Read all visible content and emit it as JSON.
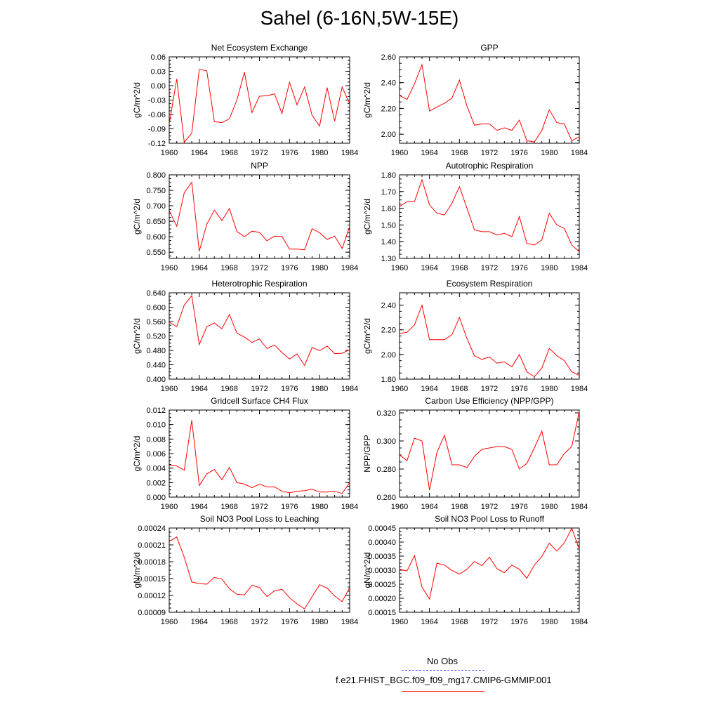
{
  "title": "Sahel (6-16N,5W-15E)",
  "legend": {
    "obs_label": "No Obs",
    "obs_color": "#3a3aff",
    "model_label": "f.e21.FHIST_BGC.f09_f09_mg17.CMIP6-GMMIP.001",
    "model_color": "#ff0000"
  },
  "chart_data": [
    {
      "type": "line",
      "title": "Net Ecosystem Exchange",
      "ylabel": "gC/m^2/d",
      "xlabel": "",
      "ylim": [
        -0.12,
        0.06
      ],
      "yticks": [
        "0.06",
        "0.03",
        "0.00",
        "-0.03",
        "-0.06",
        "-0.09",
        "-0.12"
      ],
      "ytick_values": [
        0.06,
        0.03,
        0.0,
        -0.03,
        -0.06,
        -0.09,
        -0.12
      ],
      "xlim": [
        1960,
        1984
      ],
      "xticks": [
        "1960",
        "1964",
        "1968",
        "1972",
        "1976",
        "1980",
        "1984"
      ],
      "x": [
        1960,
        1961,
        1962,
        1963,
        1964,
        1965,
        1966,
        1967,
        1968,
        1969,
        1970,
        1971,
        1972,
        1973,
        1974,
        1975,
        1976,
        1977,
        1978,
        1979,
        1980,
        1981,
        1982,
        1983,
        1984
      ],
      "series": [
        {
          "name": "f.e21.FHIST_BGC.f09_f09_mg17.CMIP6-GMMIP.001",
          "values": [
            -0.08,
            0.014,
            -0.118,
            -0.099,
            0.034,
            0.031,
            -0.075,
            -0.077,
            -0.069,
            -0.03,
            0.028,
            -0.056,
            -0.022,
            -0.021,
            -0.017,
            -0.058,
            0.007,
            -0.04,
            -0.003,
            -0.062,
            -0.084,
            -0.004,
            -0.074,
            -0.003,
            -0.038
          ]
        }
      ]
    },
    {
      "type": "line",
      "title": "GPP",
      "ylabel": "gC/m^2/d",
      "xlabel": "",
      "ylim": [
        1.93,
        2.6
      ],
      "yticks": [
        "2.60",
        "2.40",
        "2.20",
        "2.00"
      ],
      "ytick_values": [
        2.6,
        2.4,
        2.2,
        2.0
      ],
      "xlim": [
        1960,
        1984
      ],
      "xticks": [
        "1960",
        "1964",
        "1968",
        "1972",
        "1976",
        "1980",
        "1984"
      ],
      "x": [
        1960,
        1961,
        1962,
        1963,
        1964,
        1965,
        1966,
        1967,
        1968,
        1969,
        1970,
        1971,
        1972,
        1973,
        1974,
        1975,
        1976,
        1977,
        1978,
        1979,
        1980,
        1981,
        1982,
        1983,
        1984
      ],
      "series": [
        {
          "name": "f.e21.FHIST_BGC.f09_f09_mg17.CMIP6-GMMIP.001",
          "values": [
            2.3,
            2.27,
            2.39,
            2.54,
            2.18,
            2.21,
            2.24,
            2.28,
            2.42,
            2.22,
            2.07,
            2.08,
            2.08,
            2.03,
            2.05,
            2.03,
            2.11,
            1.95,
            1.94,
            2.03,
            2.19,
            2.09,
            2.08,
            1.95,
            1.98
          ]
        }
      ]
    },
    {
      "type": "line",
      "title": "NPP",
      "ylabel": "gC/m^2/d",
      "xlabel": "",
      "ylim": [
        0.53,
        0.8
      ],
      "yticks": [
        "0.800",
        "0.750",
        "0.700",
        "0.650",
        "0.600",
        "0.550"
      ],
      "ytick_values": [
        0.8,
        0.75,
        0.7,
        0.65,
        0.6,
        0.55
      ],
      "xlim": [
        1960,
        1984
      ],
      "xticks": [
        "1960",
        "1964",
        "1968",
        "1972",
        "1976",
        "1980",
        "1984"
      ],
      "x": [
        1960,
        1961,
        1962,
        1963,
        1964,
        1965,
        1966,
        1967,
        1968,
        1969,
        1970,
        1971,
        1972,
        1973,
        1974,
        1975,
        1976,
        1977,
        1978,
        1979,
        1980,
        1981,
        1982,
        1983,
        1984
      ],
      "series": [
        {
          "name": "f.e21.FHIST_BGC.f09_f09_mg17.CMIP6-GMMIP.001",
          "values": [
            0.685,
            0.634,
            0.742,
            0.776,
            0.553,
            0.64,
            0.686,
            0.652,
            0.691,
            0.617,
            0.6,
            0.618,
            0.614,
            0.587,
            0.602,
            0.601,
            0.56,
            0.56,
            0.558,
            0.626,
            0.613,
            0.591,
            0.602,
            0.562,
            0.633
          ]
        }
      ]
    },
    {
      "type": "line",
      "title": "Autotrophic Respiration",
      "ylabel": "gC/m^2/d",
      "xlabel": "",
      "ylim": [
        1.3,
        1.8
      ],
      "yticks": [
        "1.80",
        "1.70",
        "1.60",
        "1.50",
        "1.40",
        "1.30"
      ],
      "ytick_values": [
        1.8,
        1.7,
        1.6,
        1.5,
        1.4,
        1.3
      ],
      "xlim": [
        1960,
        1984
      ],
      "xticks": [
        "1960",
        "1964",
        "1968",
        "1972",
        "1976",
        "1980",
        "1984"
      ],
      "x": [
        1960,
        1961,
        1962,
        1963,
        1964,
        1965,
        1966,
        1967,
        1968,
        1969,
        1970,
        1971,
        1972,
        1973,
        1974,
        1975,
        1976,
        1977,
        1978,
        1979,
        1980,
        1981,
        1982,
        1983,
        1984
      ],
      "series": [
        {
          "name": "f.e21.FHIST_BGC.f09_f09_mg17.CMIP6-GMMIP.001",
          "values": [
            1.61,
            1.64,
            1.64,
            1.77,
            1.62,
            1.57,
            1.56,
            1.63,
            1.73,
            1.6,
            1.47,
            1.46,
            1.46,
            1.44,
            1.45,
            1.43,
            1.55,
            1.39,
            1.38,
            1.41,
            1.57,
            1.5,
            1.48,
            1.38,
            1.34
          ]
        }
      ]
    },
    {
      "type": "line",
      "title": "Heterotrophic Respiration",
      "ylabel": "gC/m^2/d",
      "xlabel": "",
      "ylim": [
        0.4,
        0.64
      ],
      "yticks": [
        "0.640",
        "0.600",
        "0.560",
        "0.520",
        "0.480",
        "0.440",
        "0.400"
      ],
      "ytick_values": [
        0.64,
        0.6,
        0.56,
        0.52,
        0.48,
        0.44,
        0.4
      ],
      "xlim": [
        1960,
        1984
      ],
      "xticks": [
        "1960",
        "1964",
        "1968",
        "1972",
        "1976",
        "1980",
        "1984"
      ],
      "x": [
        1960,
        1961,
        1962,
        1963,
        1964,
        1965,
        1966,
        1967,
        1968,
        1969,
        1970,
        1971,
        1972,
        1973,
        1974,
        1975,
        1976,
        1977,
        1978,
        1979,
        1980,
        1981,
        1982,
        1983,
        1984
      ],
      "series": [
        {
          "name": "f.e21.FHIST_BGC.f09_f09_mg17.CMIP6-GMMIP.001",
          "values": [
            0.558,
            0.546,
            0.606,
            0.632,
            0.496,
            0.546,
            0.556,
            0.54,
            0.58,
            0.528,
            0.517,
            0.502,
            0.512,
            0.485,
            0.495,
            0.474,
            0.456,
            0.47,
            0.438,
            0.488,
            0.479,
            0.492,
            0.471,
            0.472,
            0.482
          ]
        }
      ]
    },
    {
      "type": "line",
      "title": "Ecosystem Respiration",
      "ylabel": "gC/m^2/d",
      "xlabel": "",
      "ylim": [
        1.8,
        2.5
      ],
      "yticks": [
        "2.40",
        "2.20",
        "2.00",
        "1.80"
      ],
      "ytick_values": [
        2.4,
        2.2,
        2.0,
        1.8
      ],
      "xlim": [
        1960,
        1984
      ],
      "xticks": [
        "1960",
        "1964",
        "1968",
        "1972",
        "1976",
        "1980",
        "1984"
      ],
      "x": [
        1960,
        1961,
        1962,
        1963,
        1964,
        1965,
        1966,
        1967,
        1968,
        1969,
        1970,
        1971,
        1972,
        1973,
        1974,
        1975,
        1976,
        1977,
        1978,
        1979,
        1980,
        1981,
        1982,
        1983,
        1984
      ],
      "series": [
        {
          "name": "f.e21.FHIST_BGC.f09_f09_mg17.CMIP6-GMMIP.001",
          "values": [
            2.17,
            2.18,
            2.24,
            2.4,
            2.12,
            2.12,
            2.12,
            2.16,
            2.3,
            2.13,
            1.99,
            1.96,
            1.98,
            1.93,
            1.94,
            1.9,
            2.0,
            1.86,
            1.82,
            1.89,
            2.05,
            1.99,
            1.95,
            1.86,
            1.83
          ]
        }
      ]
    },
    {
      "type": "line",
      "title": "Gridcell Surface CH4 Flux",
      "ylabel": "gC/m^2/d",
      "xlabel": "",
      "ylim": [
        0.0,
        0.012
      ],
      "yticks": [
        "0.012",
        "0.010",
        "0.008",
        "0.006",
        "0.004",
        "0.002",
        "0.000"
      ],
      "ytick_values": [
        0.012,
        0.01,
        0.008,
        0.006,
        0.004,
        0.002,
        0.0
      ],
      "xlim": [
        1960,
        1984
      ],
      "xticks": [
        "1960",
        "1964",
        "1968",
        "1972",
        "1976",
        "1980",
        "1984"
      ],
      "x": [
        1960,
        1961,
        1962,
        1963,
        1964,
        1965,
        1966,
        1967,
        1968,
        1969,
        1970,
        1971,
        1972,
        1973,
        1974,
        1975,
        1976,
        1977,
        1978,
        1979,
        1980,
        1981,
        1982,
        1983,
        1984
      ],
      "series": [
        {
          "name": "f.e21.FHIST_BGC.f09_f09_mg17.CMIP6-GMMIP.001",
          "values": [
            0.0044,
            0.0043,
            0.0037,
            0.0106,
            0.0016,
            0.0032,
            0.0038,
            0.0024,
            0.0041,
            0.002,
            0.0018,
            0.0013,
            0.0018,
            0.0014,
            0.0014,
            0.0008,
            0.0006,
            0.0008,
            0.0009,
            0.0011,
            0.0007,
            0.0007,
            0.0008,
            0.0005,
            0.002
          ]
        }
      ]
    },
    {
      "type": "line",
      "title": "Carbon Use Efficiency (NPP/GPP)",
      "ylabel": "NPP/GPP",
      "xlabel": "",
      "ylim": [
        0.26,
        0.322
      ],
      "yticks": [
        "0.320",
        "0.300",
        "0.280",
        "0.260"
      ],
      "ytick_values": [
        0.32,
        0.3,
        0.28,
        0.26
      ],
      "xlim": [
        1960,
        1984
      ],
      "xticks": [
        "1960",
        "1964",
        "1968",
        "1972",
        "1976",
        "1980",
        "1984"
      ],
      "x": [
        1960,
        1961,
        1962,
        1963,
        1964,
        1965,
        1966,
        1967,
        1968,
        1969,
        1970,
        1971,
        1972,
        1973,
        1974,
        1975,
        1976,
        1977,
        1978,
        1979,
        1980,
        1981,
        1982,
        1983,
        1984
      ],
      "series": [
        {
          "name": "f.e21.FHIST_BGC.f09_f09_mg17.CMIP6-GMMIP.001",
          "values": [
            0.29,
            0.286,
            0.302,
            0.3,
            0.265,
            0.292,
            0.304,
            0.283,
            0.283,
            0.281,
            0.289,
            0.294,
            0.295,
            0.296,
            0.296,
            0.294,
            0.28,
            0.284,
            0.295,
            0.307,
            0.283,
            0.283,
            0.291,
            0.296,
            0.321
          ]
        }
      ]
    },
    {
      "type": "line",
      "title": "Soil NO3 Pool Loss to Leaching",
      "ylabel": "gN/m^2/d",
      "xlabel": "",
      "ylim": [
        9e-05,
        0.00024
      ],
      "yticks": [
        "0.00024",
        "0.00021",
        "0.00018",
        "0.00015",
        "0.00012",
        "0.00009"
      ],
      "ytick_values": [
        0.00024,
        0.00021,
        0.00018,
        0.00015,
        0.00012,
        9e-05
      ],
      "xlim": [
        1960,
        1984
      ],
      "xticks": [
        "1960",
        "1964",
        "1968",
        "1972",
        "1976",
        "1980",
        "1984"
      ],
      "x": [
        1960,
        1961,
        1962,
        1963,
        1964,
        1965,
        1966,
        1967,
        1968,
        1969,
        1970,
        1971,
        1972,
        1973,
        1974,
        1975,
        1976,
        1977,
        1978,
        1979,
        1980,
        1981,
        1982,
        1983,
        1984
      ],
      "series": [
        {
          "name": "f.e21.FHIST_BGC.f09_f09_mg17.CMIP6-GMMIP.001",
          "values": [
            0.000216,
            0.000224,
            0.000188,
            0.000144,
            0.000141,
            0.00014,
            0.000152,
            0.000149,
            0.000132,
            0.000122,
            0.000121,
            0.000138,
            0.000134,
            0.000118,
            0.000128,
            0.000131,
            0.000116,
            0.000105,
            9.6e-05,
            0.000118,
            0.000139,
            0.000133,
            0.000119,
            0.000109,
            0.000134
          ]
        }
      ]
    },
    {
      "type": "line",
      "title": "Soil NO3 Pool Loss to Runoff",
      "ylabel": "gN/m^2/d",
      "xlabel": "",
      "ylim": [
        0.00015,
        0.00045
      ],
      "yticks": [
        "0.00045",
        "0.00040",
        "0.00035",
        "0.00030",
        "0.00025",
        "0.00020",
        "0.00015"
      ],
      "ytick_values": [
        0.00045,
        0.0004,
        0.00035,
        0.0003,
        0.00025,
        0.0002,
        0.00015
      ],
      "xlim": [
        1960,
        1984
      ],
      "xticks": [
        "1960",
        "1964",
        "1968",
        "1972",
        "1976",
        "1980",
        "1984"
      ],
      "x": [
        1960,
        1961,
        1962,
        1963,
        1964,
        1965,
        1966,
        1967,
        1968,
        1969,
        1970,
        1971,
        1972,
        1973,
        1974,
        1975,
        1976,
        1977,
        1978,
        1979,
        1980,
        1981,
        1982,
        1983,
        1984
      ],
      "series": [
        {
          "name": "f.e21.FHIST_BGC.f09_f09_mg17.CMIP6-GMMIP.001",
          "values": [
            0.000303,
            0.000297,
            0.000352,
            0.00024,
            0.000197,
            0.000325,
            0.000318,
            0.000299,
            0.000286,
            0.000303,
            0.000331,
            0.000316,
            0.000346,
            0.000305,
            0.000291,
            0.000318,
            0.000303,
            0.000271,
            0.000318,
            0.000349,
            0.000396,
            0.000368,
            0.000397,
            0.000449,
            0.000375
          ]
        }
      ]
    }
  ]
}
